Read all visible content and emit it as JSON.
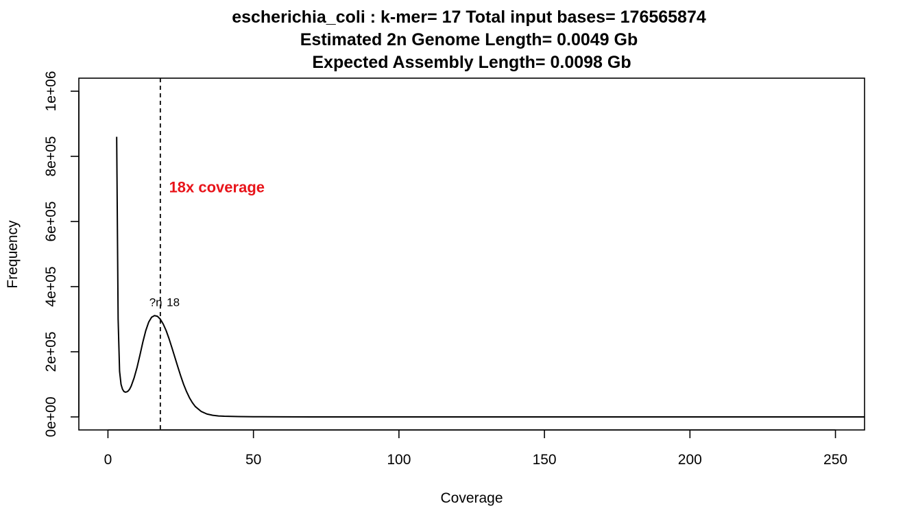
{
  "chart_data": {
    "type": "line",
    "title_lines": [
      "escherichia_coli : k-mer= 17 Total input bases= 176565874",
      "Estimated 2n Genome Length= 0.0049 Gb",
      "Expected Assembly Length= 0.0098 Gb"
    ],
    "xlabel": "Coverage",
    "ylabel": "Frequency",
    "xlim": [
      -10,
      260
    ],
    "ylim": [
      -40000,
      1040000
    ],
    "x_ticks": [
      0,
      50,
      100,
      150,
      200,
      250
    ],
    "x_tick_labels": [
      "0",
      "50",
      "100",
      "150",
      "200",
      "250"
    ],
    "y_ticks": [
      0,
      200000,
      400000,
      600000,
      800000,
      1000000
    ],
    "y_tick_labels": [
      "0e+00",
      "2e+05",
      "4e+05",
      "6e+05",
      "8e+05",
      "1e+06"
    ],
    "grid": false,
    "series": [
      {
        "x": [
          3,
          3.5,
          4,
          4.5,
          5,
          5.5,
          6,
          6.5,
          7,
          7.5,
          8,
          9,
          10,
          11,
          12,
          13,
          14,
          15,
          16,
          17,
          18,
          19,
          20,
          21,
          22,
          23,
          24,
          25,
          26,
          27,
          28,
          29,
          30,
          32,
          34,
          36,
          38,
          40,
          45,
          50,
          60,
          70,
          80,
          100,
          150,
          200,
          260
        ],
        "y": [
          860000,
          300000,
          140000,
          100000,
          85000,
          78000,
          76000,
          77000,
          80000,
          86000,
          95000,
          120000,
          152000,
          190000,
          230000,
          265000,
          291000,
          306000,
          311000,
          309000,
          300000,
          285000,
          265000,
          240000,
          212000,
          183000,
          154000,
          126000,
          100000,
          78000,
          59000,
          44000,
          32000,
          17000,
          9000,
          5000,
          3000,
          2000,
          1000,
          500,
          200,
          100,
          50,
          20,
          10,
          5,
          0
        ],
        "color": "#000000"
      }
    ],
    "vline": {
      "x": 18,
      "style": "dashed",
      "color": "#000000"
    },
    "annotations": [
      {
        "text": "?n",
        "x": 14.2,
        "y": 340000
      },
      {
        "text": "18",
        "x": 20.2,
        "y": 340000
      },
      {
        "text": "18x coverage",
        "x": 21,
        "y": 690000,
        "color": "#e8141a"
      }
    ]
  }
}
